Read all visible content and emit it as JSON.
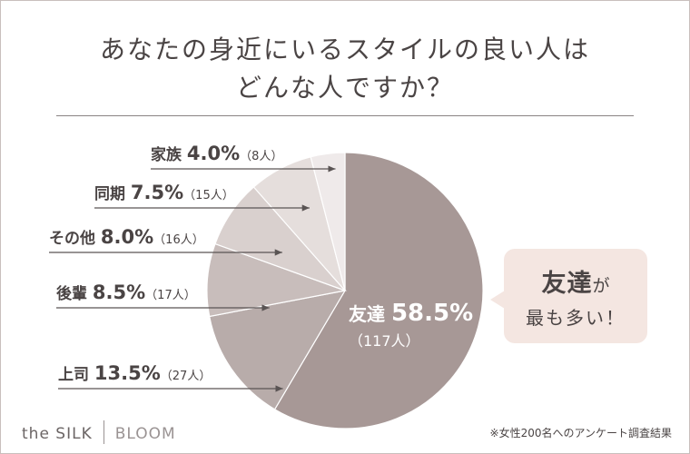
{
  "title": {
    "line1": "あなたの身近にいるスタイルの良い人は",
    "line2": "どんな人ですか？"
  },
  "colors": {
    "友達": "#a79896",
    "上司": "#b8acaa",
    "後輩": "#c8bdbb",
    "その他": "#d9d0ce",
    "同期": "#e5dedc",
    "家族": "#efeaea",
    "bubble": "#f4e6e1",
    "label_text": "#4a4444"
  },
  "chart_data": {
    "type": "pie",
    "title": "あなたの身近にいるスタイルの良い人はどんな人ですか？",
    "unit": "%",
    "slices": [
      {
        "label": "友達",
        "percent": 58.5,
        "percent_text": "58.5%",
        "count_text": "（117人）"
      },
      {
        "label": "上司",
        "percent": 13.5,
        "percent_text": "13.5%",
        "count_text": "（27人）"
      },
      {
        "label": "後輩",
        "percent": 8.5,
        "percent_text": "8.5%",
        "count_text": "（17人）"
      },
      {
        "label": "その他",
        "percent": 8.0,
        "percent_text": "8.0%",
        "count_text": "（16人）"
      },
      {
        "label": "同期",
        "percent": 7.5,
        "percent_text": "7.5%",
        "count_text": "（15人）"
      },
      {
        "label": "家族",
        "percent": 4.0,
        "percent_text": "4.0%",
        "count_text": "（8人）"
      }
    ]
  },
  "callout": {
    "highlight": "友達",
    "particle": "が",
    "line2": "最も多い！"
  },
  "footer": {
    "brand_left": "the SILK",
    "brand_right": "BLOOM",
    "note": "※女性200名へのアンケート調査結果"
  }
}
